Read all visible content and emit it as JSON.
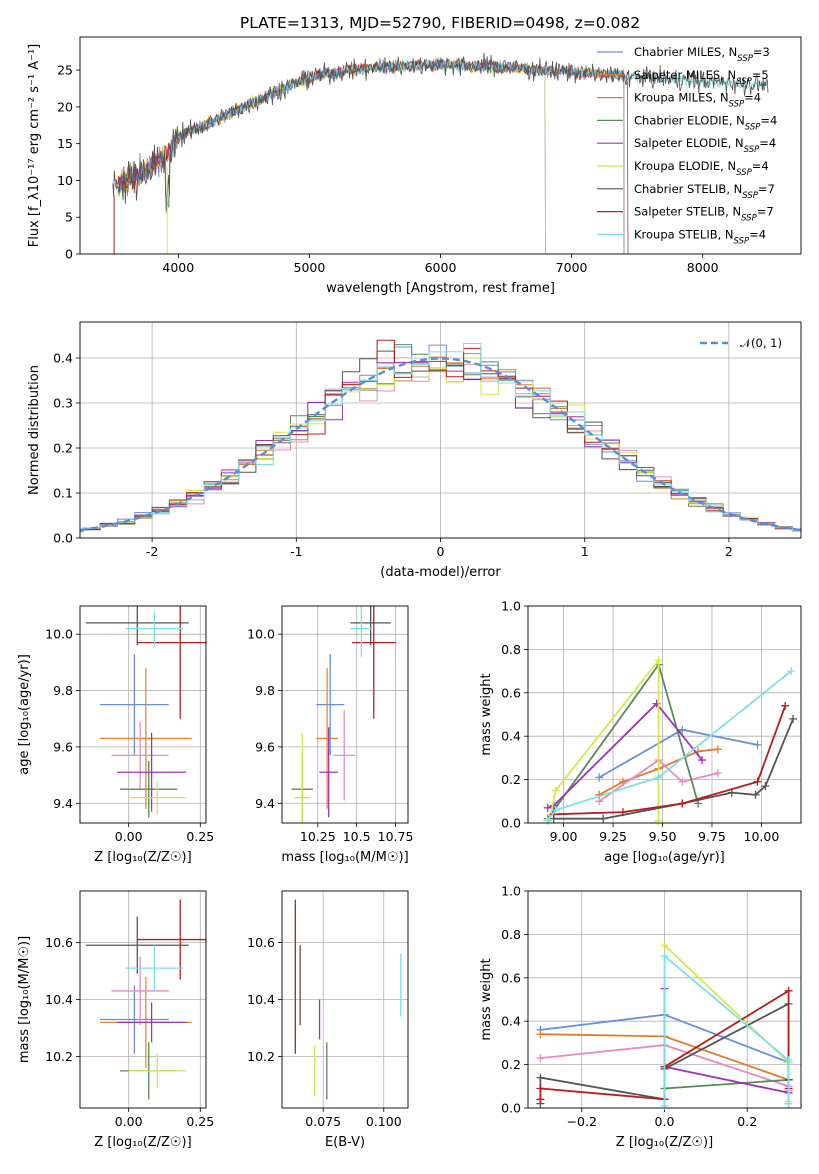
{
  "colors": {
    "Chabrier MILES": "#6a8fd8",
    "Salpeter MILES": "#e8872e",
    "Kroupa MILES": "#d4822a",
    "Chabrier ELODIE": "#5a8a5a",
    "Salpeter ELODIE": "#9b35b5",
    "Kroupa ELODIE": "#d4e84a",
    "Chabrier STELIB": "#555555",
    "Salpeter STELIB": "#b41f1f",
    "Kroupa STELIB": "#7edfe6",
    "Kroupa MILES line": "#e07b2a",
    "Salpeter MILES pink": "#e88ac0"
  },
  "chart_data": [
    {
      "id": "spectrum",
      "type": "line",
      "title": "PLATE=1313, MJD=52790, FIBERID=0498, z=0.082",
      "xlabel": "wavelength [Angstrom, rest frame]",
      "ylabel": "Flux [f_λ10^{-17} erg cm^{-2} s^{-1} A^{-1}]",
      "xlim": [
        3250,
        8750
      ],
      "ylim": [
        0,
        29.5
      ],
      "xticks": [
        4000,
        5000,
        6000,
        7000,
        8000
      ],
      "yticks": [
        0,
        5,
        10,
        15,
        20,
        25
      ],
      "legend_position": "top-right",
      "legend": [
        "Chabrier MILES, N_SSP=3",
        "Salpeter MILES, N_SSP=5",
        "Kroupa MILES, N_SSP=4",
        "Chabrier ELODIE, N_SSP=4",
        "Salpeter ELODIE, N_SSP=4",
        "Kroupa ELODIE, N_SSP=4",
        "Chabrier STELIB, N_SSP=7",
        "Salpeter STELIB, N_SSP=7",
        "Kroupa STELIB, N_SSP=4"
      ],
      "continuum": {
        "x": [
          3500,
          3700,
          3900,
          4000,
          4200,
          4500,
          4800,
          5000,
          5300,
          5600,
          6000,
          6400,
          6800,
          7200,
          7500,
          8000,
          8500
        ],
        "y": [
          9,
          11,
          13,
          16,
          17.5,
          20,
          22.5,
          24,
          25,
          25.5,
          25.8,
          25.5,
          25,
          24.5,
          24,
          23.5,
          23
        ]
      }
    },
    {
      "id": "residuals",
      "type": "line",
      "xlabel": "(data-model)/error",
      "ylabel": "Normed distribution",
      "xlim": [
        -2.5,
        2.5
      ],
      "ylim": [
        0,
        0.48
      ],
      "xticks": [
        -2,
        -1,
        0,
        1,
        2
      ],
      "yticks": [
        0.0,
        0.1,
        0.2,
        0.3,
        0.4
      ],
      "legend": [
        "𝒩(0, 1)"
      ],
      "legend_position": "top-right",
      "grid": true
    },
    {
      "id": "age-Z",
      "type": "scatter",
      "xlabel": "Z [log10(Z/Z☉)]",
      "ylabel": "age  [log10(age/yr)]",
      "xlim": [
        -0.17,
        0.27
      ],
      "ylim": [
        9.33,
        10.1
      ],
      "xticks": [
        0.0,
        0.25
      ],
      "xticklabels": [
        "0.00",
        "0.25"
      ],
      "yticks": [
        9.4,
        9.6,
        9.8,
        10.0
      ],
      "grid": true,
      "errorbars": [
        {
          "x": 0.02,
          "y": 9.75,
          "xerr": 0.12,
          "yerr": 0.18,
          "model": "Chabrier MILES"
        },
        {
          "x": 0.06,
          "y": 9.63,
          "xerr": 0.16,
          "yerr": 0.25,
          "model": "Salpeter MILES"
        },
        {
          "x": 0.04,
          "y": 9.57,
          "xerr": 0.1,
          "yerr": 0.12,
          "model": "Salpeter MILES pink"
        },
        {
          "x": 0.07,
          "y": 9.45,
          "xerr": 0.1,
          "yerr": 0.1,
          "model": "Chabrier ELODIE"
        },
        {
          "x": 0.08,
          "y": 9.51,
          "xerr": 0.12,
          "yerr": 0.14,
          "model": "Salpeter ELODIE"
        },
        {
          "x": 0.1,
          "y": 9.42,
          "xerr": 0.1,
          "yerr": 0.06,
          "model": "Kroupa ELODIE"
        },
        {
          "x": 0.03,
          "y": 10.04,
          "xerr": 0.18,
          "yerr": 0.08,
          "model": "Chabrier STELIB"
        },
        {
          "x": 0.18,
          "y": 9.97,
          "xerr": 0.15,
          "yerr": 0.27,
          "model": "Salpeter STELIB"
        },
        {
          "x": 0.09,
          "y": 10.02,
          "xerr": 0.1,
          "yerr": 0.06,
          "model": "Kroupa STELIB"
        }
      ]
    },
    {
      "id": "age-mass",
      "type": "scatter",
      "xlabel": "mass [log10(M/M☉)]",
      "ylabel": "",
      "xlim": [
        10.02,
        10.83
      ],
      "ylim": [
        9.33,
        10.1
      ],
      "xticks": [
        10.25,
        10.5,
        10.75
      ],
      "yticks": [
        9.4,
        9.6,
        9.8,
        10.0
      ],
      "grid": true,
      "errorbars": [
        {
          "x": 10.33,
          "y": 9.75,
          "xerr": 0.09,
          "yerr": 0.18,
          "model": "Chabrier MILES"
        },
        {
          "x": 10.31,
          "y": 9.63,
          "xerr": 0.07,
          "yerr": 0.25,
          "model": "Salpeter MILES"
        },
        {
          "x": 10.42,
          "y": 9.57,
          "xerr": 0.07,
          "yerr": 0.16,
          "model": "Salpeter MILES pink"
        },
        {
          "x": 10.15,
          "y": 9.45,
          "xerr": 0.07,
          "yerr": 0.13,
          "model": "Chabrier ELODIE"
        },
        {
          "x": 10.32,
          "y": 9.51,
          "xerr": 0.06,
          "yerr": 0.16,
          "model": "Salpeter ELODIE"
        },
        {
          "x": 10.15,
          "y": 9.42,
          "xerr": 0.05,
          "yerr": 0.23,
          "model": "Kroupa ELODIE"
        },
        {
          "x": 10.59,
          "y": 10.04,
          "xerr": 0.13,
          "yerr": 0.08,
          "model": "Chabrier STELIB"
        },
        {
          "x": 10.61,
          "y": 9.97,
          "xerr": 0.14,
          "yerr": 0.27,
          "model": "Salpeter STELIB"
        },
        {
          "x": 10.53,
          "y": 10.02,
          "xerr": 0.07,
          "yerr": 0.1,
          "model": "Kroupa STELIB"
        }
      ]
    },
    {
      "id": "weight-age",
      "type": "line",
      "xlabel": "age  [log10(age/yr)]",
      "ylabel": "mass weight",
      "xlim": [
        8.82,
        10.2
      ],
      "ylim": [
        0,
        1
      ],
      "xticks": [
        9.0,
        9.25,
        9.5,
        9.75,
        10.0
      ],
      "xticklabels": [
        "9.00",
        "9.25",
        "9.50",
        "9.75",
        "10.00"
      ],
      "yticks": [
        0.0,
        0.2,
        0.4,
        0.6,
        0.8,
        1.0
      ],
      "grid": true,
      "series": [
        {
          "model": "Chabrier MILES",
          "x": [
            9.18,
            9.6,
            9.98
          ],
          "y": [
            0.21,
            0.43,
            0.36
          ]
        },
        {
          "model": "Kroupa MILES line",
          "x": [
            9.18,
            9.3,
            9.48,
            9.68,
            9.78
          ],
          "y": [
            0.13,
            0.19,
            0.25,
            0.33,
            0.34
          ]
        },
        {
          "model": "Salpeter MILES pink",
          "x": [
            9.18,
            9.48,
            9.6,
            9.78
          ],
          "y": [
            0.1,
            0.29,
            0.19,
            0.23
          ]
        },
        {
          "model": "Chabrier ELODIE",
          "x": [
            8.92,
            9.48,
            9.68
          ],
          "y": [
            0.02,
            0.73,
            0.09
          ]
        },
        {
          "model": "Salpeter ELODIE",
          "x": [
            8.92,
            8.95,
            9.47,
            9.7
          ],
          "y": [
            0.07,
            0.08,
            0.55,
            0.29
          ]
        },
        {
          "model": "Kroupa ELODIE",
          "x": [
            8.93,
            8.96,
            9.48,
            9.48
          ],
          "y": [
            0.02,
            0.15,
            0.75,
            0.01
          ]
        },
        {
          "model": "Chabrier STELIB",
          "x": [
            8.95,
            9.2,
            9.6,
            9.85,
            9.97,
            10.02,
            10.16
          ],
          "y": [
            0.02,
            0.02,
            0.09,
            0.14,
            0.13,
            0.17,
            0.48
          ]
        },
        {
          "model": "Salpeter STELIB",
          "x": [
            8.95,
            9.3,
            9.6,
            9.98,
            10.12
          ],
          "y": [
            0.04,
            0.05,
            0.09,
            0.19,
            0.54
          ]
        },
        {
          "model": "Kroupa STELIB",
          "x": [
            8.92,
            8.96,
            9.48,
            10.15
          ],
          "y": [
            0.01,
            0.06,
            0.21,
            0.7
          ]
        }
      ]
    },
    {
      "id": "mass-Z",
      "type": "scatter",
      "xlabel": "Z [log10(Z/Z☉)]",
      "ylabel": "mass [log10(M/M☉)]",
      "xlim": [
        -0.17,
        0.27
      ],
      "ylim": [
        10.02,
        10.78
      ],
      "xticks": [
        0.0,
        0.25
      ],
      "xticklabels": [
        "0.00",
        "0.25"
      ],
      "yticks": [
        10.2,
        10.4,
        10.6
      ],
      "grid": true,
      "errorbars": [
        {
          "x": 0.02,
          "y": 10.33,
          "xerr": 0.12,
          "yerr": 0.12,
          "model": "Chabrier MILES"
        },
        {
          "x": 0.06,
          "y": 10.32,
          "xerr": 0.16,
          "yerr": 0.16,
          "model": "Salpeter MILES"
        },
        {
          "x": 0.04,
          "y": 10.43,
          "xerr": 0.1,
          "yerr": 0.12,
          "model": "Salpeter MILES pink"
        },
        {
          "x": 0.07,
          "y": 10.15,
          "xerr": 0.1,
          "yerr": 0.1,
          "model": "Chabrier ELODIE"
        },
        {
          "x": 0.08,
          "y": 10.32,
          "xerr": 0.12,
          "yerr": 0.07,
          "model": "Salpeter ELODIE"
        },
        {
          "x": 0.1,
          "y": 10.15,
          "xerr": 0.1,
          "yerr": 0.06,
          "model": "Kroupa ELODIE"
        },
        {
          "x": 0.03,
          "y": 10.59,
          "xerr": 0.18,
          "yerr": 0.1,
          "model": "Chabrier STELIB"
        },
        {
          "x": 0.18,
          "y": 10.61,
          "xerr": 0.15,
          "yerr": 0.14,
          "model": "Salpeter STELIB"
        },
        {
          "x": 0.09,
          "y": 10.51,
          "xerr": 0.1,
          "yerr": 0.08,
          "model": "Kroupa STELIB"
        }
      ]
    },
    {
      "id": "mass-EBV",
      "type": "scatter",
      "xlabel": "E(B-V)",
      "ylabel": "",
      "xlim": [
        0.058,
        0.11
      ],
      "ylim": [
        10.02,
        10.78
      ],
      "xticks": [
        0.075,
        0.1
      ],
      "xticklabels": [
        "0.075",
        "0.100"
      ],
      "yticks": [
        10.2,
        10.4,
        10.6
      ],
      "grid": true,
      "errorbars": [
        {
          "x": 0.0635,
          "y": 10.48,
          "yerr": 0.27,
          "model": "Salpeter STELIB"
        },
        {
          "x": 0.0655,
          "y": 10.45,
          "yerr": 0.14,
          "model": "Chabrier STELIB"
        },
        {
          "x": 0.0715,
          "y": 10.15,
          "yerr": 0.09,
          "model": "Kroupa ELODIE"
        },
        {
          "x": 0.0735,
          "y": 10.33,
          "yerr": 0.07,
          "model": "Salpeter ELODIE"
        },
        {
          "x": 0.0765,
          "y": 10.15,
          "yerr": 0.1,
          "model": "Chabrier ELODIE"
        },
        {
          "x": 0.107,
          "y": 10.45,
          "yerr": 0.11,
          "model": "Kroupa STELIB"
        }
      ]
    },
    {
      "id": "weight-Z",
      "type": "line",
      "xlabel": "Z [log10(Z/Z☉)]",
      "ylabel": "mass weight",
      "xlim": [
        -0.33,
        0.33
      ],
      "ylim": [
        0,
        1
      ],
      "xticks": [
        -0.2,
        0.0,
        0.2
      ],
      "xticklabels": [
        "−0.2",
        "0.0",
        "0.2"
      ],
      "yticks": [
        0.0,
        0.2,
        0.4,
        0.6,
        0.8,
        1.0
      ],
      "grid": true,
      "series": [
        {
          "model": "Chabrier MILES",
          "x": [
            -0.3,
            0.0,
            0.3
          ],
          "y": [
            0.36,
            0.43,
            0.21
          ]
        },
        {
          "model": "Kroupa MILES line",
          "x": [
            -0.3,
            0.0,
            0.3
          ],
          "y": [
            0.34,
            0.33,
            0.13
          ]
        },
        {
          "model": "Salpeter MILES pink",
          "x": [
            -0.3,
            0.0,
            0.3,
            0.3
          ],
          "y": [
            0.23,
            0.29,
            0.1,
            0.08
          ]
        },
        {
          "model": "Chabrier ELODIE",
          "x": [
            0.0,
            0.3,
            0.3
          ],
          "y": [
            0.09,
            0.13,
            0.02
          ]
        },
        {
          "model": "Salpeter ELODIE",
          "x": [
            0.0,
            0.0,
            0.3
          ],
          "y": [
            0.55,
            0.19,
            0.07
          ]
        },
        {
          "model": "Kroupa ELODIE",
          "x": [
            0.0,
            0.3,
            0.3
          ],
          "y": [
            0.75,
            0.21,
            0.03
          ]
        },
        {
          "model": "Chabrier STELIB",
          "x": [
            -0.3,
            -0.3,
            0.0,
            0.0,
            0.3,
            0.3
          ],
          "y": [
            0.02,
            0.14,
            0.04,
            0.18,
            0.48,
            0.13
          ]
        },
        {
          "model": "Salpeter STELIB",
          "x": [
            -0.3,
            -0.3,
            0.0,
            0.0,
            0.3,
            0.3
          ],
          "y": [
            0.04,
            0.09,
            0.04,
            0.19,
            0.54,
            0.09
          ]
        },
        {
          "model": "Kroupa STELIB",
          "x": [
            0.0,
            0.0,
            0.3,
            0.3
          ],
          "y": [
            0.01,
            0.7,
            0.22,
            0.02
          ]
        }
      ]
    }
  ]
}
